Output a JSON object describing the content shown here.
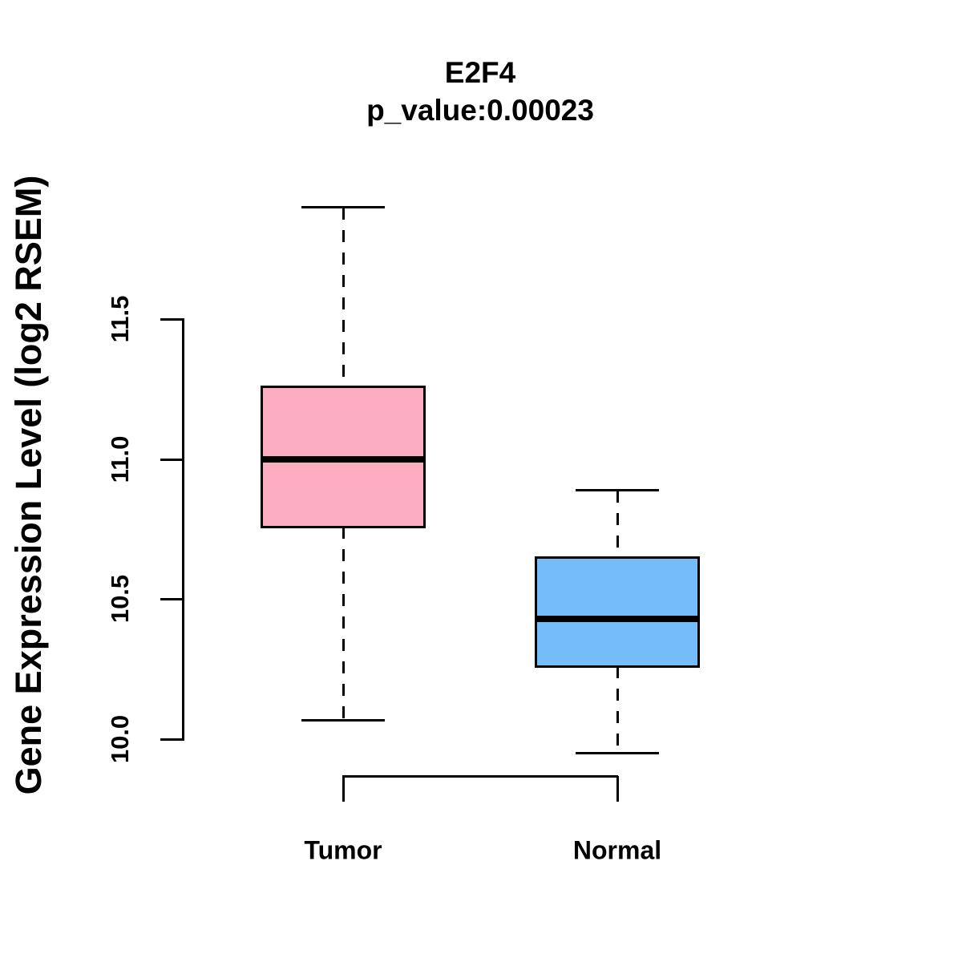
{
  "figure": {
    "title": "E2F4",
    "subtitle": "p_value:0.00023",
    "ylabel": "Gene Expression Level (log2 RSEM)"
  },
  "colors": {
    "tumor_fill": "#FCADC1",
    "normal_fill": "#74BDF8",
    "line": "#000000",
    "background": "#FFFFFF"
  },
  "chart_data": {
    "type": "boxplot",
    "title": "E2F4",
    "subtitle": "p_value:0.00023",
    "xlabel": "",
    "ylabel": "Gene Expression Level (log2 RSEM)",
    "ylim": [
      9.95,
      11.9
    ],
    "yticks": [
      10.0,
      10.5,
      11.0,
      11.5
    ],
    "ytick_labels": [
      "10.0",
      "10.5",
      "11.0",
      "11.5"
    ],
    "grid": false,
    "legend": false,
    "categories": [
      "Tumor",
      "Normal"
    ],
    "series": [
      {
        "name": "Tumor",
        "fill_color": "#FCADC1",
        "lower_whisker": 10.07,
        "q1": 10.76,
        "median": 11.0,
        "q3": 11.26,
        "upper_whisker": 11.9
      },
      {
        "name": "Normal",
        "fill_color": "#74BDF8",
        "lower_whisker": 9.95,
        "q1": 10.26,
        "median": 10.43,
        "q3": 10.65,
        "upper_whisker": 10.89
      }
    ]
  }
}
